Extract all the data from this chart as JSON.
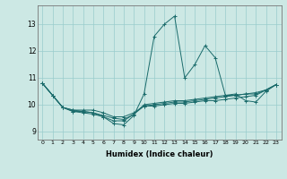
{
  "xlabel": "Humidex (Indice chaleur)",
  "ylabel": "",
  "bg_color": "#cce8e4",
  "grid_color": "#99cccc",
  "line_color": "#1a6b6b",
  "xlim": [
    -0.5,
    23.5
  ],
  "ylim": [
    8.7,
    13.7
  ],
  "yticks": [
    9,
    10,
    11,
    12,
    13
  ],
  "xticks": [
    0,
    1,
    2,
    3,
    4,
    5,
    6,
    7,
    8,
    9,
    10,
    11,
    12,
    13,
    14,
    15,
    16,
    17,
    18,
    19,
    20,
    21,
    22,
    23
  ],
  "curves": [
    [
      10.8,
      10.35,
      9.9,
      9.75,
      9.75,
      9.7,
      9.55,
      9.3,
      9.25,
      9.6,
      10.4,
      12.55,
      13.0,
      13.3,
      11.0,
      11.5,
      12.2,
      11.75,
      10.35,
      10.4,
      10.15,
      10.1,
      10.5,
      10.75
    ],
    [
      10.8,
      10.35,
      9.9,
      9.8,
      9.8,
      9.8,
      9.7,
      9.55,
      9.55,
      9.7,
      9.95,
      9.95,
      10.0,
      10.05,
      10.05,
      10.1,
      10.15,
      10.15,
      10.2,
      10.25,
      10.3,
      10.35,
      10.55,
      10.75
    ],
    [
      10.8,
      10.35,
      9.9,
      9.75,
      9.7,
      9.65,
      9.55,
      9.4,
      9.4,
      9.65,
      10.0,
      10.05,
      10.1,
      10.15,
      10.15,
      10.2,
      10.25,
      10.3,
      10.35,
      10.35,
      10.4,
      10.45,
      10.55,
      10.75
    ],
    [
      10.8,
      10.35,
      9.9,
      9.8,
      9.75,
      9.7,
      9.6,
      9.5,
      9.45,
      9.65,
      9.95,
      10.0,
      10.05,
      10.1,
      10.1,
      10.15,
      10.2,
      10.25,
      10.3,
      10.35,
      10.4,
      10.4,
      10.55,
      10.75
    ]
  ]
}
